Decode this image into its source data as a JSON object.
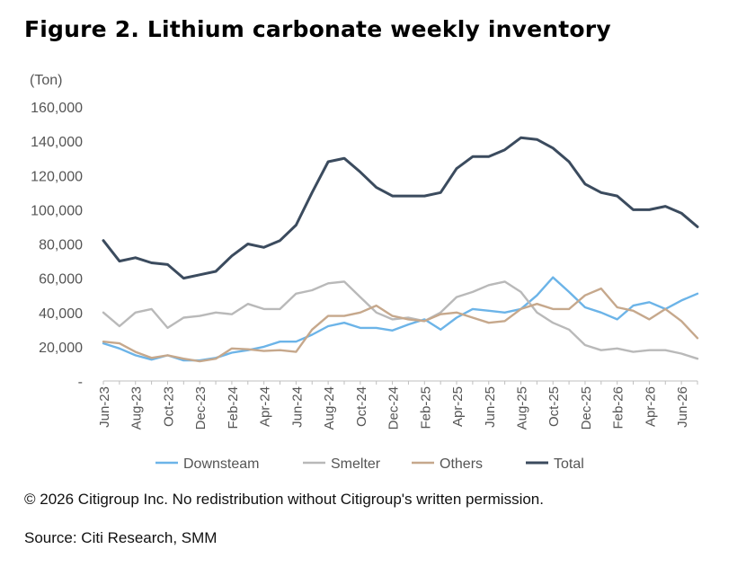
{
  "title": "Figure 2. Lithium carbonate weekly inventory",
  "copyright": "© 2026 Citigroup Inc. No redistribution without Citigroup's written permission.",
  "source": "Source: Citi Research, SMM",
  "chart_data": {
    "type": "line",
    "ylabel": "(Ton)",
    "ylim": [
      0,
      160000
    ],
    "y_ticks": [
      0,
      20000,
      40000,
      60000,
      80000,
      100000,
      120000,
      140000,
      160000
    ],
    "y_tick_labels": [
      "-",
      "20,000",
      "40,000",
      "60,000",
      "80,000",
      "100,000",
      "120,000",
      "140,000",
      "160,000"
    ],
    "x_tick_labels": [
      "Jun-23",
      "Aug-23",
      "Oct-23",
      "Dec-23",
      "Feb-24",
      "Apr-24",
      "Jun-24",
      "Aug-24",
      "Oct-24",
      "Dec-24",
      "Feb-25",
      "Apr-25",
      "Jun-25",
      "Aug-25",
      "Oct-25",
      "Dec-25",
      "Feb-26",
      "Apr-26",
      "Jun-26"
    ],
    "x_range": [
      "2023-06",
      "2026-07"
    ],
    "grid": false,
    "legend": "bottom",
    "series": [
      {
        "name": "Downsteam",
        "color": "#6cb4e8",
        "points": [
          [
            "2023-06",
            22000
          ],
          [
            "2023-07",
            19000
          ],
          [
            "2023-08",
            15000
          ],
          [
            "2023-09",
            12500
          ],
          [
            "2023-10",
            15000
          ],
          [
            "2023-11",
            12000
          ],
          [
            "2023-12",
            12000
          ],
          [
            "2024-01",
            13500
          ],
          [
            "2024-02",
            16500
          ],
          [
            "2024-03",
            18000
          ],
          [
            "2024-04",
            20000
          ],
          [
            "2024-05",
            23000
          ],
          [
            "2024-06",
            23000
          ],
          [
            "2024-07",
            27000
          ],
          [
            "2024-08",
            32000
          ],
          [
            "2024-09",
            34000
          ],
          [
            "2024-10",
            31000
          ],
          [
            "2024-11",
            31000
          ],
          [
            "2024-12",
            29500
          ],
          [
            "2025-01",
            33000
          ],
          [
            "2025-02",
            36000
          ],
          [
            "2025-03",
            30000
          ],
          [
            "2025-04",
            37000
          ],
          [
            "2025-05",
            42000
          ],
          [
            "2025-06",
            41000
          ],
          [
            "2025-07",
            40000
          ],
          [
            "2025-08",
            42000
          ],
          [
            "2025-09",
            50000
          ],
          [
            "2025-10",
            60500
          ],
          [
            "2025-11",
            52000
          ],
          [
            "2025-12",
            43000
          ],
          [
            "2026-01",
            40000
          ],
          [
            "2026-02",
            36000
          ],
          [
            "2026-03",
            44000
          ],
          [
            "2026-04",
            46000
          ],
          [
            "2026-05",
            42000
          ],
          [
            "2026-06",
            47000
          ],
          [
            "2026-07",
            51000
          ]
        ]
      },
      {
        "name": "Smelter",
        "color": "#b9b9b9",
        "points": [
          [
            "2023-06",
            40000
          ],
          [
            "2023-07",
            32000
          ],
          [
            "2023-08",
            40000
          ],
          [
            "2023-09",
            42000
          ],
          [
            "2023-10",
            31000
          ],
          [
            "2023-11",
            37000
          ],
          [
            "2023-12",
            38000
          ],
          [
            "2024-01",
            40000
          ],
          [
            "2024-02",
            39000
          ],
          [
            "2024-03",
            45000
          ],
          [
            "2024-04",
            42000
          ],
          [
            "2024-05",
            42000
          ],
          [
            "2024-06",
            51000
          ],
          [
            "2024-07",
            53000
          ],
          [
            "2024-08",
            57000
          ],
          [
            "2024-09",
            58000
          ],
          [
            "2024-10",
            49000
          ],
          [
            "2024-11",
            40000
          ],
          [
            "2024-12",
            36000
          ],
          [
            "2025-01",
            37000
          ],
          [
            "2025-02",
            35000
          ],
          [
            "2025-03",
            40000
          ],
          [
            "2025-04",
            49000
          ],
          [
            "2025-05",
            52000
          ],
          [
            "2025-06",
            56000
          ],
          [
            "2025-07",
            58000
          ],
          [
            "2025-08",
            52000
          ],
          [
            "2025-09",
            40000
          ],
          [
            "2025-10",
            34000
          ],
          [
            "2025-11",
            30000
          ],
          [
            "2025-12",
            21000
          ],
          [
            "2026-01",
            18000
          ],
          [
            "2026-02",
            19000
          ],
          [
            "2026-03",
            17000
          ],
          [
            "2026-04",
            18000
          ],
          [
            "2026-05",
            18000
          ],
          [
            "2026-06",
            16000
          ],
          [
            "2026-07",
            13000
          ]
        ]
      },
      {
        "name": "Others",
        "color": "#c6a88c",
        "points": [
          [
            "2023-06",
            23000
          ],
          [
            "2023-07",
            22000
          ],
          [
            "2023-08",
            17000
          ],
          [
            "2023-09",
            13500
          ],
          [
            "2023-10",
            15000
          ],
          [
            "2023-11",
            13000
          ],
          [
            "2023-12",
            11500
          ],
          [
            "2024-01",
            13000
          ],
          [
            "2024-02",
            19000
          ],
          [
            "2024-03",
            18500
          ],
          [
            "2024-04",
            17500
          ],
          [
            "2024-05",
            18000
          ],
          [
            "2024-06",
            17000
          ],
          [
            "2024-07",
            30000
          ],
          [
            "2024-08",
            38000
          ],
          [
            "2024-09",
            38000
          ],
          [
            "2024-10",
            40000
          ],
          [
            "2024-11",
            44000
          ],
          [
            "2024-12",
            38000
          ],
          [
            "2025-01",
            36000
          ],
          [
            "2025-02",
            35000
          ],
          [
            "2025-03",
            39000
          ],
          [
            "2025-04",
            40000
          ],
          [
            "2025-05",
            37000
          ],
          [
            "2025-06",
            34000
          ],
          [
            "2025-07",
            35000
          ],
          [
            "2025-08",
            42000
          ],
          [
            "2025-09",
            45000
          ],
          [
            "2025-10",
            42000
          ],
          [
            "2025-11",
            42000
          ],
          [
            "2025-12",
            50000
          ],
          [
            "2026-01",
            54000
          ],
          [
            "2026-02",
            43000
          ],
          [
            "2026-03",
            41000
          ],
          [
            "2026-04",
            36000
          ],
          [
            "2026-05",
            42000
          ],
          [
            "2026-06",
            35000
          ],
          [
            "2026-07",
            25000
          ]
        ]
      },
      {
        "name": "Total",
        "color": "#3b4b5e",
        "points": [
          [
            "2023-06",
            82000
          ],
          [
            "2023-07",
            70000
          ],
          [
            "2023-08",
            72000
          ],
          [
            "2023-09",
            69000
          ],
          [
            "2023-10",
            68000
          ],
          [
            "2023-11",
            60000
          ],
          [
            "2023-12",
            62000
          ],
          [
            "2024-01",
            64000
          ],
          [
            "2024-02",
            73000
          ],
          [
            "2024-03",
            80000
          ],
          [
            "2024-04",
            78000
          ],
          [
            "2024-05",
            82000
          ],
          [
            "2024-06",
            91000
          ],
          [
            "2024-07",
            110000
          ],
          [
            "2024-08",
            128000
          ],
          [
            "2024-09",
            130000
          ],
          [
            "2024-10",
            122000
          ],
          [
            "2024-11",
            113000
          ],
          [
            "2024-12",
            108000
          ],
          [
            "2025-01",
            108000
          ],
          [
            "2025-02",
            108000
          ],
          [
            "2025-03",
            110000
          ],
          [
            "2025-04",
            124000
          ],
          [
            "2025-05",
            131000
          ],
          [
            "2025-06",
            131000
          ],
          [
            "2025-07",
            135000
          ],
          [
            "2025-08",
            142000
          ],
          [
            "2025-09",
            141000
          ],
          [
            "2025-10",
            136000
          ],
          [
            "2025-11",
            128000
          ],
          [
            "2025-12",
            115000
          ],
          [
            "2026-01",
            110000
          ],
          [
            "2026-02",
            108000
          ],
          [
            "2026-03",
            100000
          ],
          [
            "2026-04",
            100000
          ],
          [
            "2026-05",
            102000
          ],
          [
            "2026-06",
            98000
          ],
          [
            "2026-07",
            90000
          ]
        ]
      }
    ]
  }
}
